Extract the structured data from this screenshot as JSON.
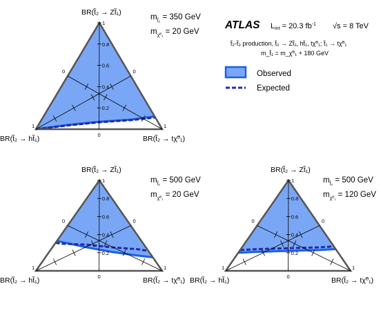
{
  "header": {
    "atlas": "ATLAS",
    "lumi": "L",
    "lumi_sub": "int",
    "lumi_value": " = 20.3 fb",
    "lumi_sup": "-1",
    "sqrts": "√s = 8 TeV",
    "process_line": "t̃₂-t̃₂ production, t̃₂ → Zt̃₁, ht̃₁, tχ̃⁰₁; t̃₁ → tχ̃⁰₁",
    "mass_relation": "m_t̃₁ = m_χ̃⁰₁ + 180 GeV"
  },
  "legend": {
    "observed": "Observed",
    "expected": "Expected",
    "observed_fill": "#7aa7f5",
    "observed_line": "#1a5fe8",
    "expected_line": "#1f2aa8",
    "position": "top-right"
  },
  "corner_labels": {
    "top": "BR(t̃₂ → Zt̃₁)",
    "left": "BR(t̃₂ → ht̃₁)",
    "right": "BR(t̃₂ → tχ̃⁰₁)"
  },
  "ticks": {
    "vertical": [
      "0.2",
      "0.4",
      "0.6",
      "0.8",
      "1"
    ],
    "edge_zero": "0",
    "corner_one": "1"
  },
  "chart_data": [
    {
      "type": "ternary",
      "name_panel": "top-left",
      "mass_line_1": "m",
      "mass_sub_1": "t̃₂",
      "mass_val_1": " = 350 GeV",
      "mass_line_2": "m",
      "mass_sub_2": "χ̃⁰₁",
      "mass_val_2": " = 20 GeV",
      "observed_boundary": [
        [
          0.0,
          0.0
        ],
        [
          0.25,
          0.04
        ],
        [
          0.5,
          0.07
        ],
        [
          0.75,
          0.09
        ],
        [
          1.0,
          0.12
        ]
      ],
      "expected_boundary": [
        [
          0.0,
          0.0
        ],
        [
          0.25,
          0.035
        ],
        [
          0.5,
          0.065
        ],
        [
          0.75,
          0.085
        ],
        [
          1.0,
          0.11
        ]
      ]
    },
    {
      "type": "ternary",
      "name_panel": "bottom-left",
      "mass_line_1": "m",
      "mass_sub_1": "t̃₂",
      "mass_val_1": " = 500 GeV",
      "mass_line_2": "m",
      "mass_sub_2": "χ̃⁰₁",
      "mass_val_2": " = 20 GeV",
      "observed_boundary": [
        [
          0.0,
          0.33
        ],
        [
          0.2,
          0.32
        ],
        [
          0.4,
          0.26
        ],
        [
          0.6,
          0.21
        ],
        [
          0.8,
          0.17
        ],
        [
          1.0,
          0.15
        ]
      ],
      "expected_boundary": [
        [
          0.0,
          0.31
        ],
        [
          0.2,
          0.3
        ],
        [
          0.4,
          0.29
        ],
        [
          0.6,
          0.26
        ],
        [
          0.8,
          0.24
        ],
        [
          1.0,
          0.22
        ]
      ]
    },
    {
      "type": "ternary",
      "name_panel": "bottom-right",
      "mass_line_1": "m",
      "mass_sub_1": "t̃₂",
      "mass_val_1": " = 500 GeV",
      "mass_line_2": "m",
      "mass_sub_2": "χ̃⁰₁",
      "mass_val_2": " = 120 GeV",
      "observed_boundary": [
        [
          0.0,
          0.2
        ],
        [
          0.25,
          0.21
        ],
        [
          0.5,
          0.22
        ],
        [
          0.75,
          0.23
        ],
        [
          1.0,
          0.24
        ]
      ],
      "expected_boundary": [
        [
          0.0,
          0.23
        ],
        [
          0.25,
          0.24
        ],
        [
          0.5,
          0.25
        ],
        [
          0.75,
          0.26
        ],
        [
          1.0,
          0.27
        ]
      ]
    }
  ]
}
